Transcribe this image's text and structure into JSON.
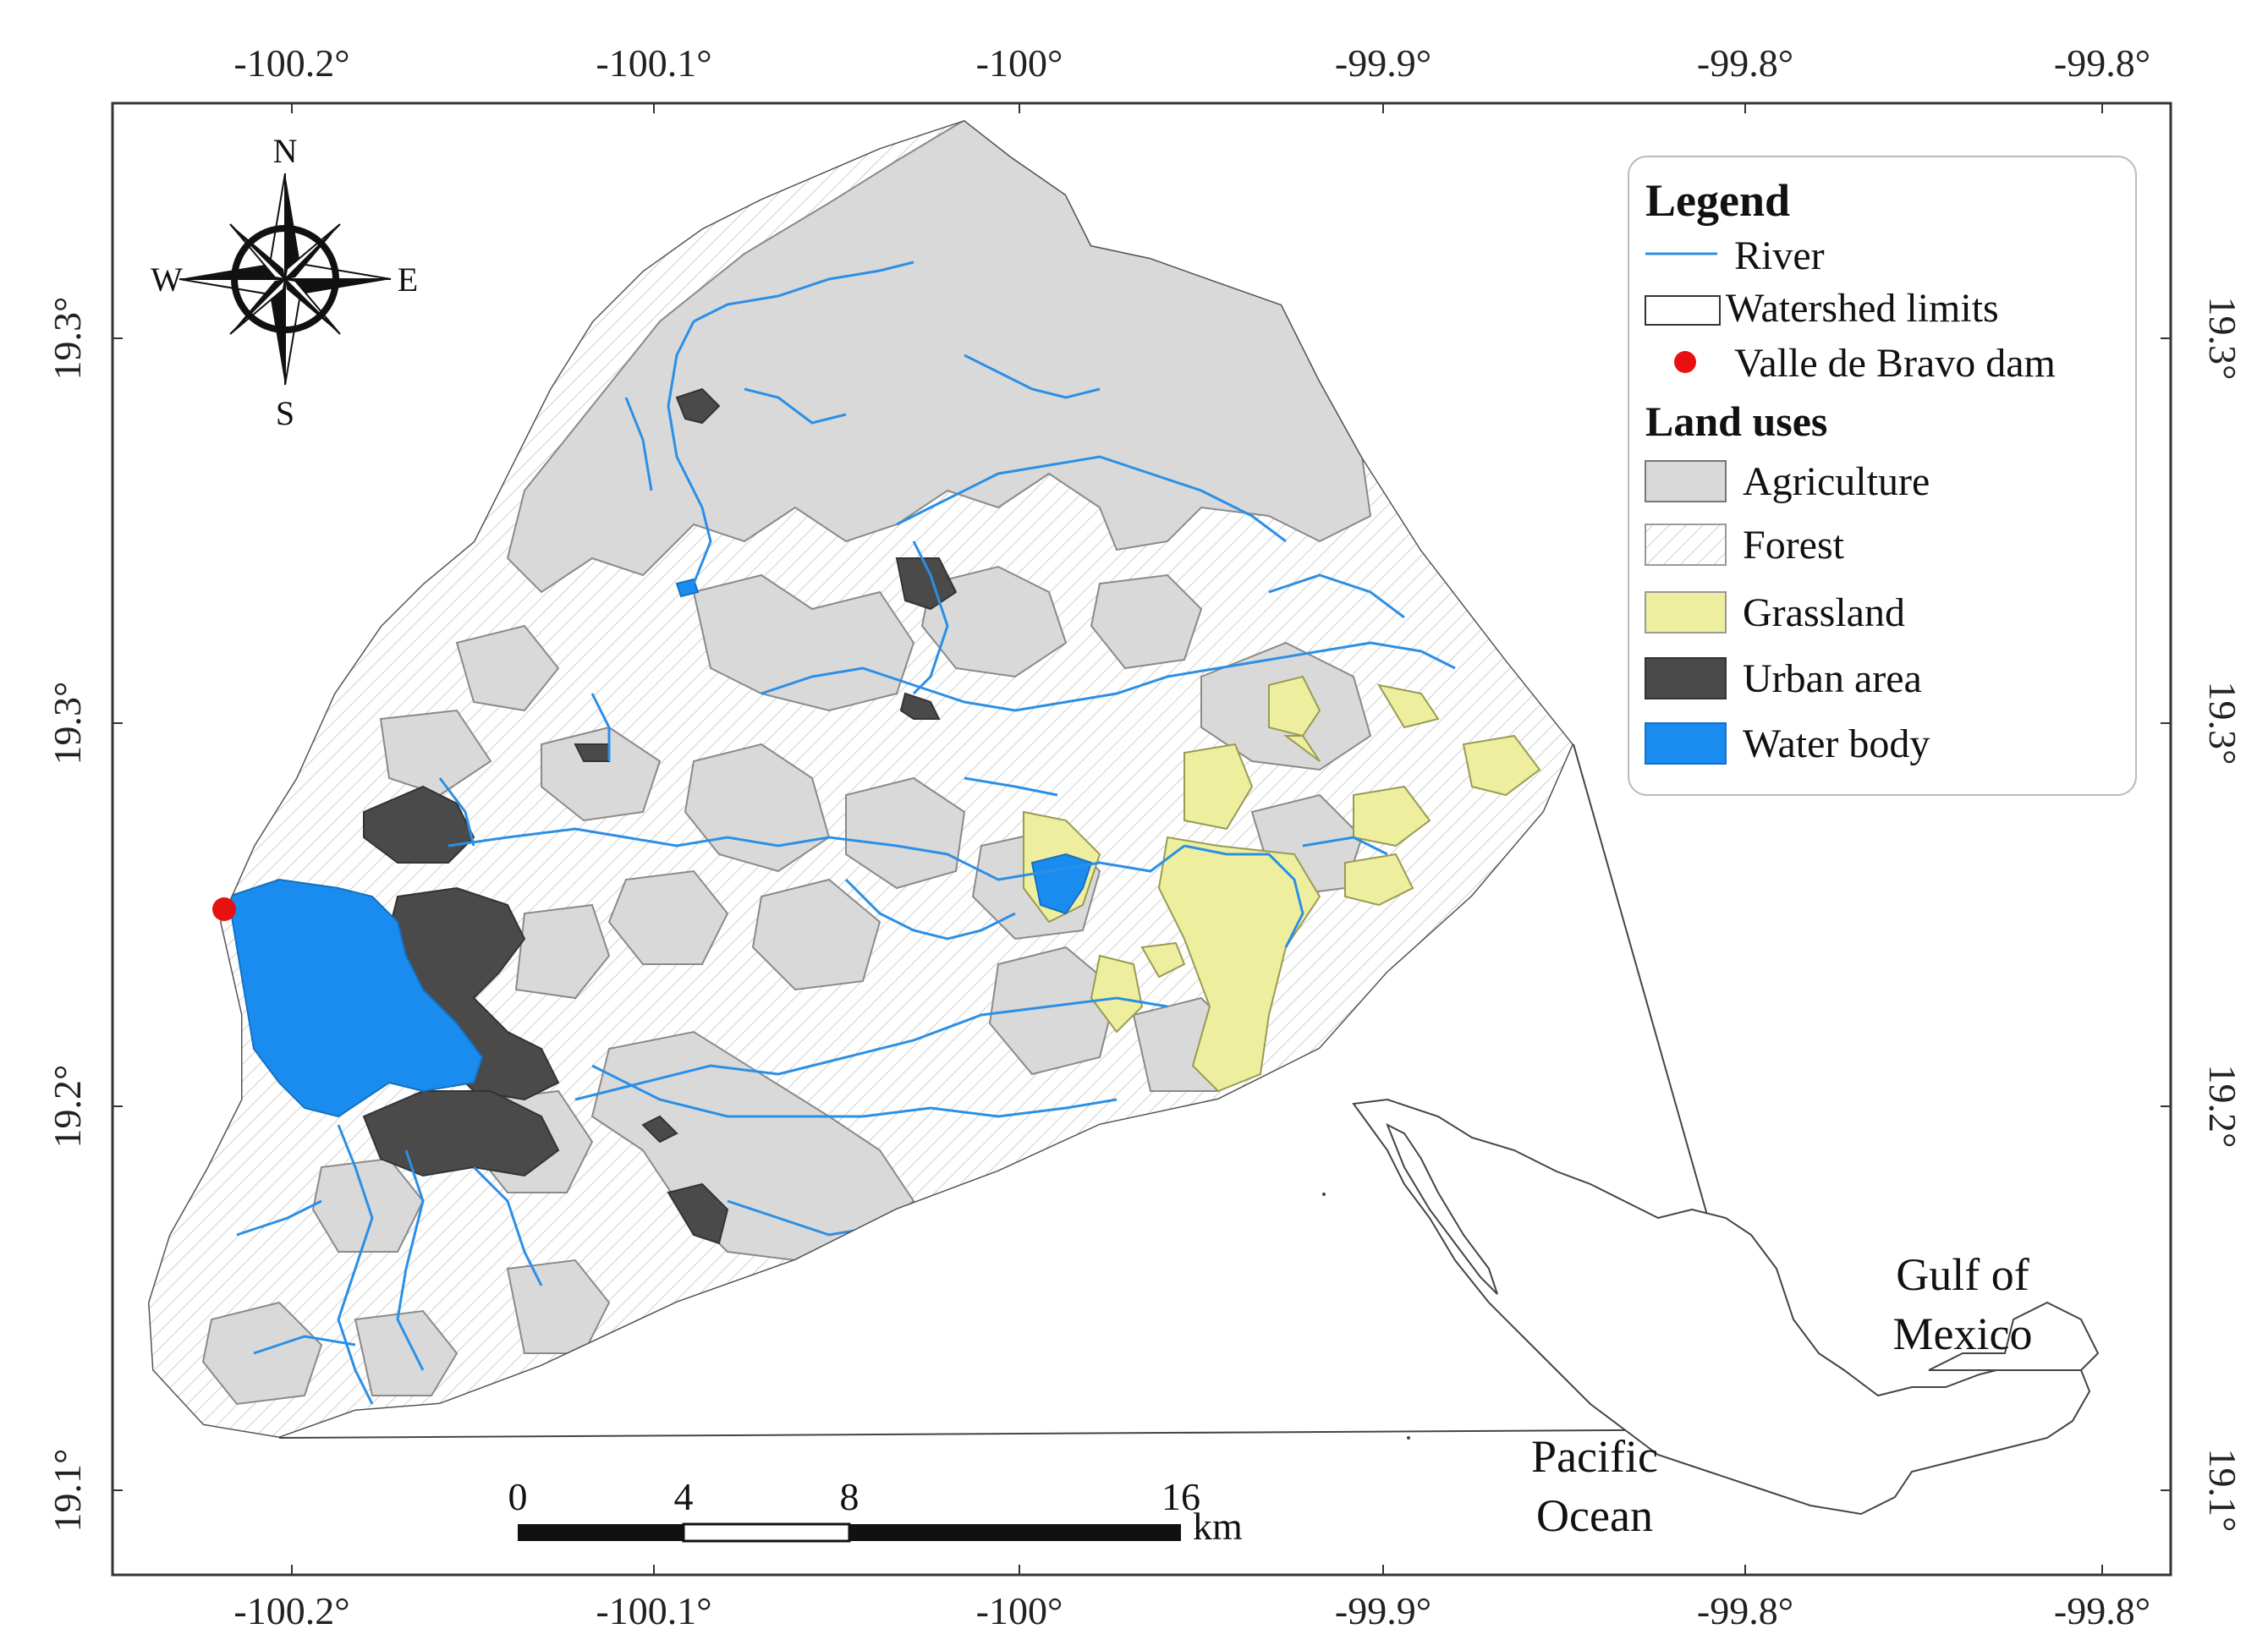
{
  "map": {
    "top_ticks": [
      "-100.2°",
      "-100.1°",
      "-100°",
      "-99.9°",
      "-99.8°",
      "-99.8°"
    ],
    "bottom_ticks": [
      "-100.2°",
      "-100.1°",
      "-100°",
      "-99.9°",
      "-99.8°",
      "-99.8°"
    ],
    "left_ticks": [
      "19.3°",
      "19.3°",
      "19.2°",
      "19.1°"
    ],
    "right_ticks": [
      "19.3°",
      "19.3°",
      "19.2°",
      "19.1°"
    ],
    "compass": {
      "n": "N",
      "s": "S",
      "e": "E",
      "w": "W"
    },
    "legend": {
      "title": "Legend",
      "river": "River",
      "watershed": "Watershed limits",
      "dam": "Valle de Bravo dam",
      "land_uses_title": "Land uses",
      "agriculture": "Agriculture",
      "forest": "Forest",
      "grassland": "Grassland",
      "urban": "Urban area",
      "water": "Water body"
    },
    "scalebar": {
      "labels": [
        "0",
        "4",
        "8",
        "16"
      ],
      "unit": "km"
    },
    "inset": {
      "gulf_line1": "Gulf of",
      "gulf_line2": "Mexico",
      "pacific_line1": "Pacific",
      "pacific_line2": "Ocean"
    },
    "colors": {
      "agriculture": "#d9d9d9",
      "forest_hatch": "#cfcfcf",
      "grassland": "#eeee9f",
      "urban": "#4a4a4a",
      "water": "#1a8cf0",
      "river": "#2b8fe6",
      "dam": "#e81010"
    }
  }
}
